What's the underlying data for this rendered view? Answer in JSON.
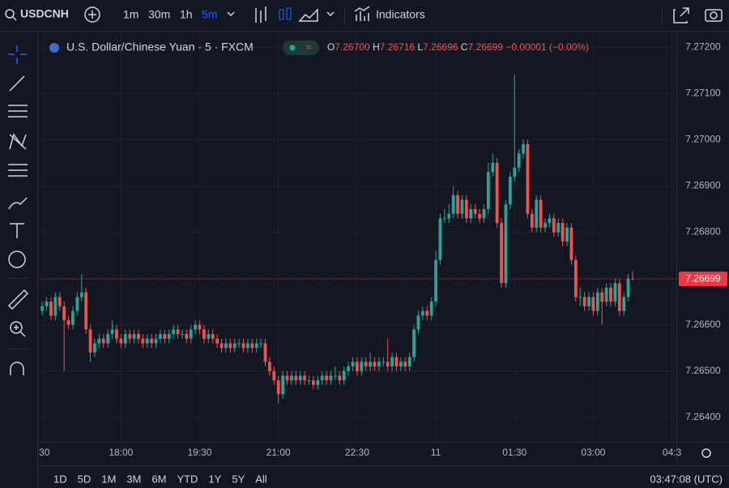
{
  "ui": {
    "symbol": "USDCNH",
    "intervals": [
      "1m",
      "30m",
      "1h",
      "5m"
    ],
    "indicators": "Indicators",
    "legend_title": "U.S. Dollar/Chinese Yuan · 5 · FXCM",
    "ohlc": [
      {
        "key": "O",
        "text": "7.26700"
      },
      {
        "key": "H",
        "text": "7.26716"
      },
      {
        "key": "L",
        "text": "7.26696"
      },
      {
        "key": "C",
        "text": "7.26699"
      }
    ],
    "change": "−0.00001 (−0.00%)",
    "ranges": [
      "1D",
      "5D",
      "1M",
      "3M",
      "6M",
      "YTD",
      "1Y",
      "5Y",
      "All"
    ],
    "clock": "03:47:08 (UTC)"
  },
  "chart_data": {
    "type": "candlestick",
    "up_color": "#26a69a",
    "down_color": "#ef5350",
    "grid": true,
    "ylim": [
      7.26356,
      7.27223
    ],
    "xlim": [
      -0.4,
      145
    ],
    "yticks": [
      {
        "value": 7.264,
        "label": "7.26400"
      },
      {
        "value": 7.265,
        "label": "7.26500"
      },
      {
        "value": 7.266,
        "label": "7.26600"
      },
      {
        "value": 7.267,
        "label": "7.26700"
      },
      {
        "value": 7.268,
        "label": "7.26800"
      },
      {
        "value": 7.269,
        "label": "7.26900"
      },
      {
        "value": 7.27,
        "label": "7.27000"
      },
      {
        "value": 7.271,
        "label": "7.27100"
      },
      {
        "value": 7.272,
        "label": "7.27200"
      }
    ],
    "xticks": [
      {
        "value": 0.5,
        "label": "30"
      },
      {
        "value": 18,
        "label": "18:00"
      },
      {
        "value": 36,
        "label": "19:30"
      },
      {
        "value": 54,
        "label": "21:00"
      },
      {
        "value": 72,
        "label": "22:30"
      },
      {
        "value": 90,
        "label": "11"
      },
      {
        "value": 108,
        "label": "01:30"
      },
      {
        "value": 126,
        "label": "03:00"
      },
      {
        "value": 144,
        "label": "04:3"
      }
    ],
    "last_price": {
      "value": 7.26699,
      "label": "7.26699",
      "color": "#f23645"
    },
    "candles": [
      [
        7.2663,
        7.2665,
        7.2662,
        7.2664
      ],
      [
        7.2664,
        7.2666,
        7.2663,
        7.2665
      ],
      [
        7.2665,
        7.2666,
        7.2661,
        7.2662
      ],
      [
        7.2662,
        7.2667,
        7.2661,
        7.2666
      ],
      [
        7.2666,
        7.2667,
        7.2663,
        7.2664
      ],
      [
        7.2664,
        7.2665,
        7.265,
        7.2661
      ],
      [
        7.2661,
        7.2662,
        7.2659,
        7.266
      ],
      [
        7.266,
        7.2664,
        7.2659,
        7.2663
      ],
      [
        7.2663,
        7.2667,
        7.2662,
        7.2666
      ],
      [
        7.2666,
        7.2671,
        7.2665,
        7.2667
      ],
      [
        7.2667,
        7.2668,
        7.2658,
        7.2659
      ],
      [
        7.2659,
        7.266,
        7.2652,
        7.2654
      ],
      [
        7.2654,
        7.2657,
        7.2653,
        7.2656
      ],
      [
        7.2656,
        7.2658,
        7.2655,
        7.2657
      ],
      [
        7.2657,
        7.2658,
        7.2655,
        7.2656
      ],
      [
        7.2656,
        7.2659,
        7.2655,
        7.2658
      ],
      [
        7.2658,
        7.2661,
        7.2657,
        7.2659
      ],
      [
        7.2659,
        7.266,
        7.2656,
        7.2657
      ],
      [
        7.2657,
        7.2658,
        7.2655,
        7.2656
      ],
      [
        7.2656,
        7.2659,
        7.2655,
        7.2658
      ],
      [
        7.2658,
        7.2659,
        7.2656,
        7.2657
      ],
      [
        7.2657,
        7.2659,
        7.2656,
        7.2658
      ],
      [
        7.2658,
        7.2659,
        7.2656,
        7.2657
      ],
      [
        7.2657,
        7.2658,
        7.2655,
        7.2656
      ],
      [
        7.2656,
        7.2658,
        7.2655,
        7.2657
      ],
      [
        7.2657,
        7.2658,
        7.2655,
        7.2656
      ],
      [
        7.2656,
        7.2658,
        7.2655,
        7.2657
      ],
      [
        7.2657,
        7.2659,
        7.2656,
        7.2658
      ],
      [
        7.2658,
        7.2659,
        7.2656,
        7.2657
      ],
      [
        7.2657,
        7.2659,
        7.2656,
        7.2658
      ],
      [
        7.2658,
        7.266,
        7.2657,
        7.2659
      ],
      [
        7.2659,
        7.266,
        7.2657,
        7.2658
      ],
      [
        7.2658,
        7.2659,
        7.2657,
        7.2658
      ],
      [
        7.2658,
        7.2659,
        7.2656,
        7.2657
      ],
      [
        7.2657,
        7.266,
        7.2656,
        7.2659
      ],
      [
        7.2659,
        7.2661,
        7.2658,
        7.266
      ],
      [
        7.266,
        7.2661,
        7.2658,
        7.2659
      ],
      [
        7.2659,
        7.266,
        7.2656,
        7.2657
      ],
      [
        7.2657,
        7.2659,
        7.2656,
        7.2658
      ],
      [
        7.2658,
        7.2659,
        7.2656,
        7.2657
      ],
      [
        7.2657,
        7.2658,
        7.2655,
        7.2656
      ],
      [
        7.2656,
        7.2657,
        7.2654,
        7.2655
      ],
      [
        7.2655,
        7.2657,
        7.2654,
        7.2656
      ],
      [
        7.2656,
        7.2657,
        7.2654,
        7.2655
      ],
      [
        7.2655,
        7.2657,
        7.2654,
        7.2656
      ],
      [
        7.2656,
        7.2657,
        7.2655,
        7.2656
      ],
      [
        7.2656,
        7.2657,
        7.2654,
        7.2655
      ],
      [
        7.2655,
        7.2657,
        7.2654,
        7.2656
      ],
      [
        7.2656,
        7.2657,
        7.2654,
        7.2655
      ],
      [
        7.2655,
        7.2657,
        7.2654,
        7.2656
      ],
      [
        7.2656,
        7.2657,
        7.2655,
        7.2656
      ],
      [
        7.2656,
        7.2657,
        7.2651,
        7.2652
      ],
      [
        7.2652,
        7.2653,
        7.2649,
        7.265
      ],
      [
        7.265,
        7.2651,
        7.2647,
        7.2648
      ],
      [
        7.2648,
        7.2649,
        7.2643,
        7.2645
      ],
      [
        7.2645,
        7.265,
        7.2644,
        7.2649
      ],
      [
        7.2649,
        7.265,
        7.2647,
        7.2648
      ],
      [
        7.2648,
        7.265,
        7.2647,
        7.2649
      ],
      [
        7.2649,
        7.265,
        7.2647,
        7.2648
      ],
      [
        7.2648,
        7.265,
        7.2647,
        7.2649
      ],
      [
        7.2649,
        7.265,
        7.2647,
        7.2648
      ],
      [
        7.2648,
        7.2649,
        7.2647,
        7.2648
      ],
      [
        7.2648,
        7.2649,
        7.2646,
        7.2647
      ],
      [
        7.2647,
        7.2649,
        7.2646,
        7.2648
      ],
      [
        7.2648,
        7.265,
        7.2647,
        7.2649
      ],
      [
        7.2649,
        7.265,
        7.2647,
        7.2648
      ],
      [
        7.2648,
        7.265,
        7.2647,
        7.2649
      ],
      [
        7.2649,
        7.2651,
        7.2648,
        7.2649
      ],
      [
        7.2649,
        7.265,
        7.2647,
        7.2648
      ],
      [
        7.2648,
        7.2651,
        7.2647,
        7.265
      ],
      [
        7.265,
        7.2652,
        7.2649,
        7.2651
      ],
      [
        7.2651,
        7.2653,
        7.265,
        7.2652
      ],
      [
        7.2652,
        7.2653,
        7.2649,
        7.265
      ],
      [
        7.265,
        7.2653,
        7.2649,
        7.2652
      ],
      [
        7.2652,
        7.2653,
        7.265,
        7.2651
      ],
      [
        7.2651,
        7.2654,
        7.265,
        7.2652
      ],
      [
        7.2652,
        7.2653,
        7.265,
        7.2651
      ],
      [
        7.2651,
        7.2653,
        7.265,
        7.2652
      ],
      [
        7.2652,
        7.2653,
        7.2651,
        7.2652
      ],
      [
        7.2652,
        7.2657,
        7.265,
        7.2651
      ],
      [
        7.2651,
        7.2654,
        7.265,
        7.2653
      ],
      [
        7.2653,
        7.2654,
        7.265,
        7.2651
      ],
      [
        7.2651,
        7.2653,
        7.265,
        7.2652
      ],
      [
        7.2652,
        7.2653,
        7.265,
        7.2651
      ],
      [
        7.2651,
        7.2654,
        7.265,
        7.2653
      ],
      [
        7.2653,
        7.266,
        7.2652,
        7.2659
      ],
      [
        7.2659,
        7.2663,
        7.2658,
        7.2662
      ],
      [
        7.2662,
        7.2664,
        7.2661,
        7.2663
      ],
      [
        7.2663,
        7.2664,
        7.2661,
        7.2662
      ],
      [
        7.2662,
        7.2666,
        7.2661,
        7.2665
      ],
      [
        7.2665,
        7.2676,
        7.2664,
        7.2674
      ],
      [
        7.2674,
        7.2684,
        7.2673,
        7.2683
      ],
      [
        7.2683,
        7.2685,
        7.2682,
        7.2683
      ],
      [
        7.2683,
        7.2686,
        7.2682,
        7.2684
      ],
      [
        7.2684,
        7.269,
        7.2683,
        7.2688
      ],
      [
        7.2688,
        7.2689,
        7.2683,
        7.2684
      ],
      [
        7.2684,
        7.2688,
        7.2683,
        7.2687
      ],
      [
        7.2687,
        7.2688,
        7.2682,
        7.2683
      ],
      [
        7.2683,
        7.2686,
        7.2682,
        7.2685
      ],
      [
        7.2685,
        7.2686,
        7.2683,
        7.2684
      ],
      [
        7.2684,
        7.2685,
        7.2682,
        7.2683
      ],
      [
        7.2683,
        7.2686,
        7.2682,
        7.2685
      ],
      [
        7.2685,
        7.2695,
        7.2684,
        7.2693
      ],
      [
        7.2693,
        7.2697,
        7.2692,
        7.2695
      ],
      [
        7.2695,
        7.2696,
        7.2681,
        7.2682
      ],
      [
        7.2682,
        7.2683,
        7.2668,
        7.2669
      ],
      [
        7.2669,
        7.2687,
        7.2668,
        7.2686
      ],
      [
        7.2686,
        7.2693,
        7.2685,
        7.2692
      ],
      [
        7.2692,
        7.2714,
        7.2691,
        7.2694
      ],
      [
        7.2694,
        7.2698,
        7.2693,
        7.2697
      ],
      [
        7.2697,
        7.27,
        7.2696,
        7.2699
      ],
      [
        7.2699,
        7.27,
        7.2683,
        7.2684
      ],
      [
        7.2684,
        7.2685,
        7.268,
        7.2681
      ],
      [
        7.2681,
        7.2688,
        7.268,
        7.2687
      ],
      [
        7.2687,
        7.2688,
        7.268,
        7.2681
      ],
      [
        7.2681,
        7.2683,
        7.268,
        7.2682
      ],
      [
        7.2682,
        7.2684,
        7.2681,
        7.2683
      ],
      [
        7.2683,
        7.2684,
        7.2679,
        7.268
      ],
      [
        7.268,
        7.2683,
        7.2679,
        7.2682
      ],
      [
        7.2682,
        7.2683,
        7.2677,
        7.2678
      ],
      [
        7.2678,
        7.2682,
        7.2677,
        7.2681
      ],
      [
        7.2681,
        7.2682,
        7.2673,
        7.2674
      ],
      [
        7.2674,
        7.2675,
        7.2665,
        7.2666
      ],
      [
        7.2666,
        7.2668,
        7.2664,
        7.2666
      ],
      [
        7.2666,
        7.2667,
        7.2663,
        7.2664
      ],
      [
        7.2664,
        7.2667,
        7.2663,
        7.2666
      ],
      [
        7.2666,
        7.2667,
        7.2662,
        7.2663
      ],
      [
        7.2663,
        7.2668,
        7.2662,
        7.2667
      ],
      [
        7.2667,
        7.2668,
        7.266,
        7.2665
      ],
      [
        7.2665,
        7.2669,
        7.2664,
        7.2668
      ],
      [
        7.2668,
        7.2669,
        7.2664,
        7.2665
      ],
      [
        7.2665,
        7.267,
        7.2664,
        7.2669
      ],
      [
        7.2669,
        7.267,
        7.2662,
        7.2663
      ],
      [
        7.2663,
        7.2667,
        7.2662,
        7.2666
      ],
      [
        7.2666,
        7.2671,
        7.2665,
        7.267
      ],
      [
        7.267,
        7.26716,
        7.26696,
        7.26699
      ]
    ]
  }
}
